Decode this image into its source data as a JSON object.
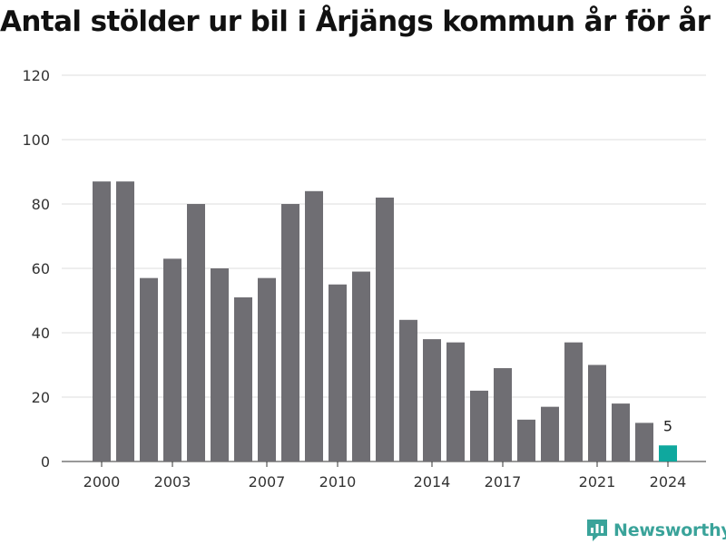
{
  "title": "Antal stölder ur bil i Årjängs kommun år för år",
  "brand": "Newsworthy",
  "colors": {
    "bar": "#6f6e73",
    "highlight": "#0fa89e",
    "grid": "#dddddd",
    "brand": "#3aa39a"
  },
  "chart_data": {
    "type": "bar",
    "title": "Antal stölder ur bil i Årjängs kommun år för år",
    "xlabel": "",
    "ylabel": "",
    "ylim": [
      0,
      120
    ],
    "yticks": [
      0,
      20,
      40,
      60,
      80,
      100,
      120
    ],
    "xticks": [
      2000,
      2003,
      2007,
      2010,
      2014,
      2017,
      2021,
      2024
    ],
    "grid": true,
    "categories": [
      2000,
      2001,
      2002,
      2003,
      2004,
      2005,
      2006,
      2007,
      2008,
      2009,
      2010,
      2011,
      2012,
      2013,
      2014,
      2015,
      2016,
      2017,
      2018,
      2019,
      2020,
      2021,
      2022,
      2023,
      2024
    ],
    "values": [
      87,
      87,
      57,
      63,
      80,
      60,
      51,
      57,
      80,
      84,
      55,
      59,
      82,
      44,
      38,
      37,
      22,
      29,
      13,
      17,
      37,
      30,
      18,
      12,
      5
    ],
    "highlight": {
      "category": 2024,
      "label": "5"
    }
  }
}
